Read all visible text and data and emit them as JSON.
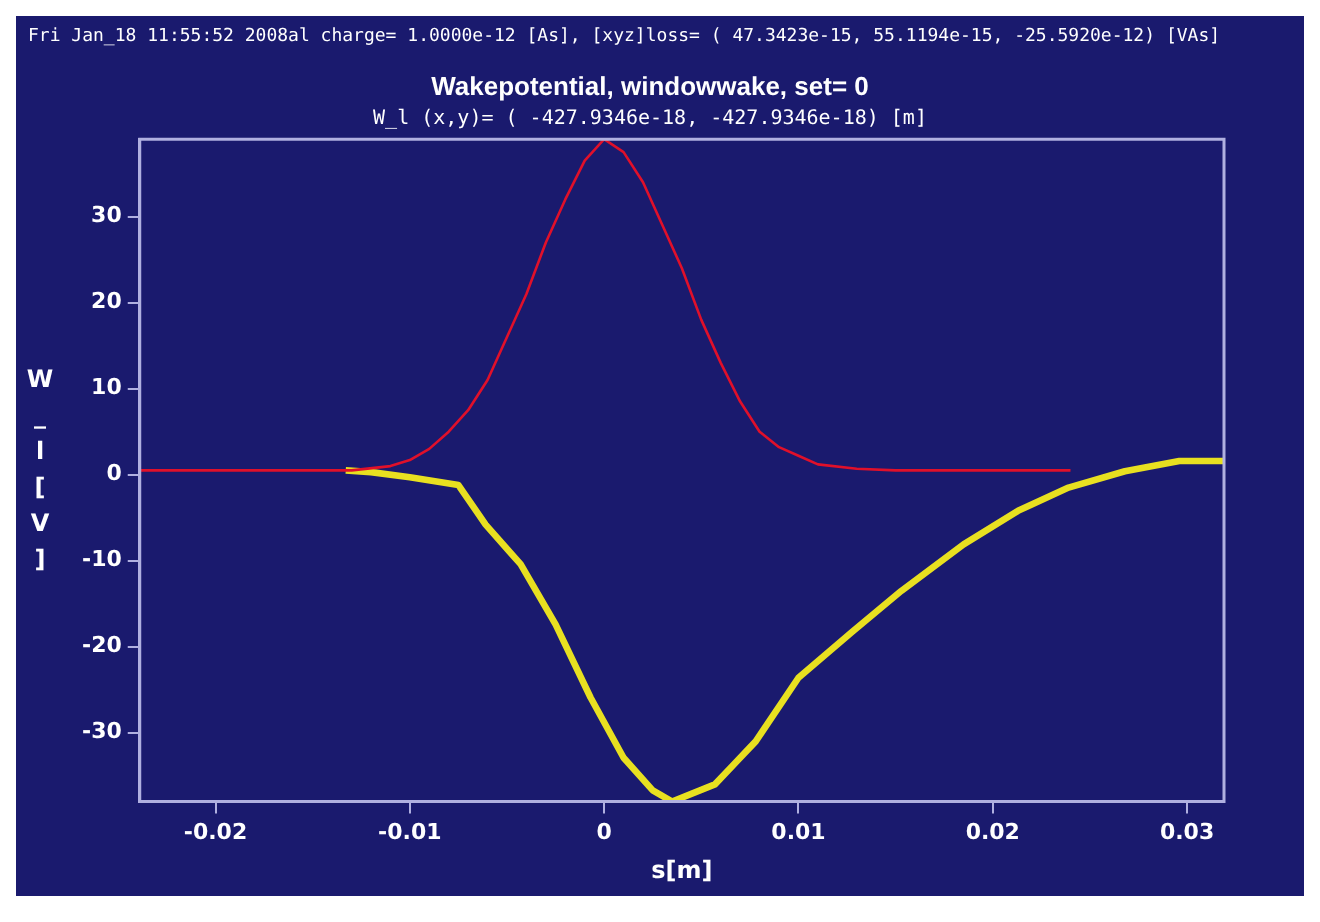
{
  "chart_data": {
    "type": "line",
    "title": "Wakepotential, windowwake, set= 0",
    "subtitle": "W_l (x,y)= ( -427.9346e-18, -427.9346e-18) [m]",
    "xlabel": "s[m]",
    "ylabel": "W_l [V]",
    "annotations": [
      "Fri Jan_18 11:55:52 2008al charge= 1.0000e-12 [As], [xyz]loss= ( 47.3423e-15, 55.1194e-15, -25.5920e-12) [VAs]"
    ],
    "xlim": [
      -0.0239,
      0.0319
    ],
    "xticks": [
      -0.02,
      -0.01,
      0,
      0.01,
      0.02,
      0.03
    ],
    "ylim": [
      -38,
      39
    ],
    "yticks": [
      -30,
      -20,
      -10,
      0,
      10,
      20,
      30
    ],
    "grid": false,
    "legend": false,
    "marker": "none",
    "line_style": "solid",
    "series": [
      {
        "color": "#e0102a",
        "x": [
          -0.0239,
          -0.013,
          -0.011,
          -0.01,
          -0.009,
          -0.008,
          -0.007,
          -0.006,
          -0.005,
          -0.004,
          -0.003,
          -0.002,
          -0.001,
          0,
          0.001,
          0.002,
          0.003,
          0.004,
          0.005,
          0.006,
          0.007,
          0.008,
          0.009,
          0.01,
          0.011,
          0.013,
          0.015,
          0.024
        ],
        "values": [
          0.5,
          0.5,
          1,
          1.7,
          3,
          5,
          7.5,
          11,
          16,
          21,
          27,
          32,
          36.5,
          39,
          37.5,
          34,
          29,
          24,
          18,
          13,
          8.5,
          5,
          3.2,
          2.2,
          1.2,
          0.7,
          0.5,
          0.5
        ]
      },
      {
        "color": "#e8e020",
        "x": [
          -0.0133,
          -0.012,
          -0.01,
          -0.0075,
          -0.0061,
          -0.0043,
          -0.0025,
          -0.0007,
          0.001,
          0.0025,
          0.0035,
          0.0057,
          0.0078,
          0.01,
          0.0128,
          0.0153,
          0.0185,
          0.0213,
          0.0239,
          0.0268,
          0.0296,
          0.0319
        ],
        "values": [
          0.5,
          0.3,
          -0.3,
          -1.2,
          -5.8,
          -10.4,
          -17.4,
          -25.9,
          -32.9,
          -36.7,
          -38,
          -36,
          -31,
          -23.6,
          -18.2,
          -13.5,
          -8.1,
          -4.2,
          -1.5,
          0.4,
          1.6,
          1.6
        ]
      }
    ]
  }
}
